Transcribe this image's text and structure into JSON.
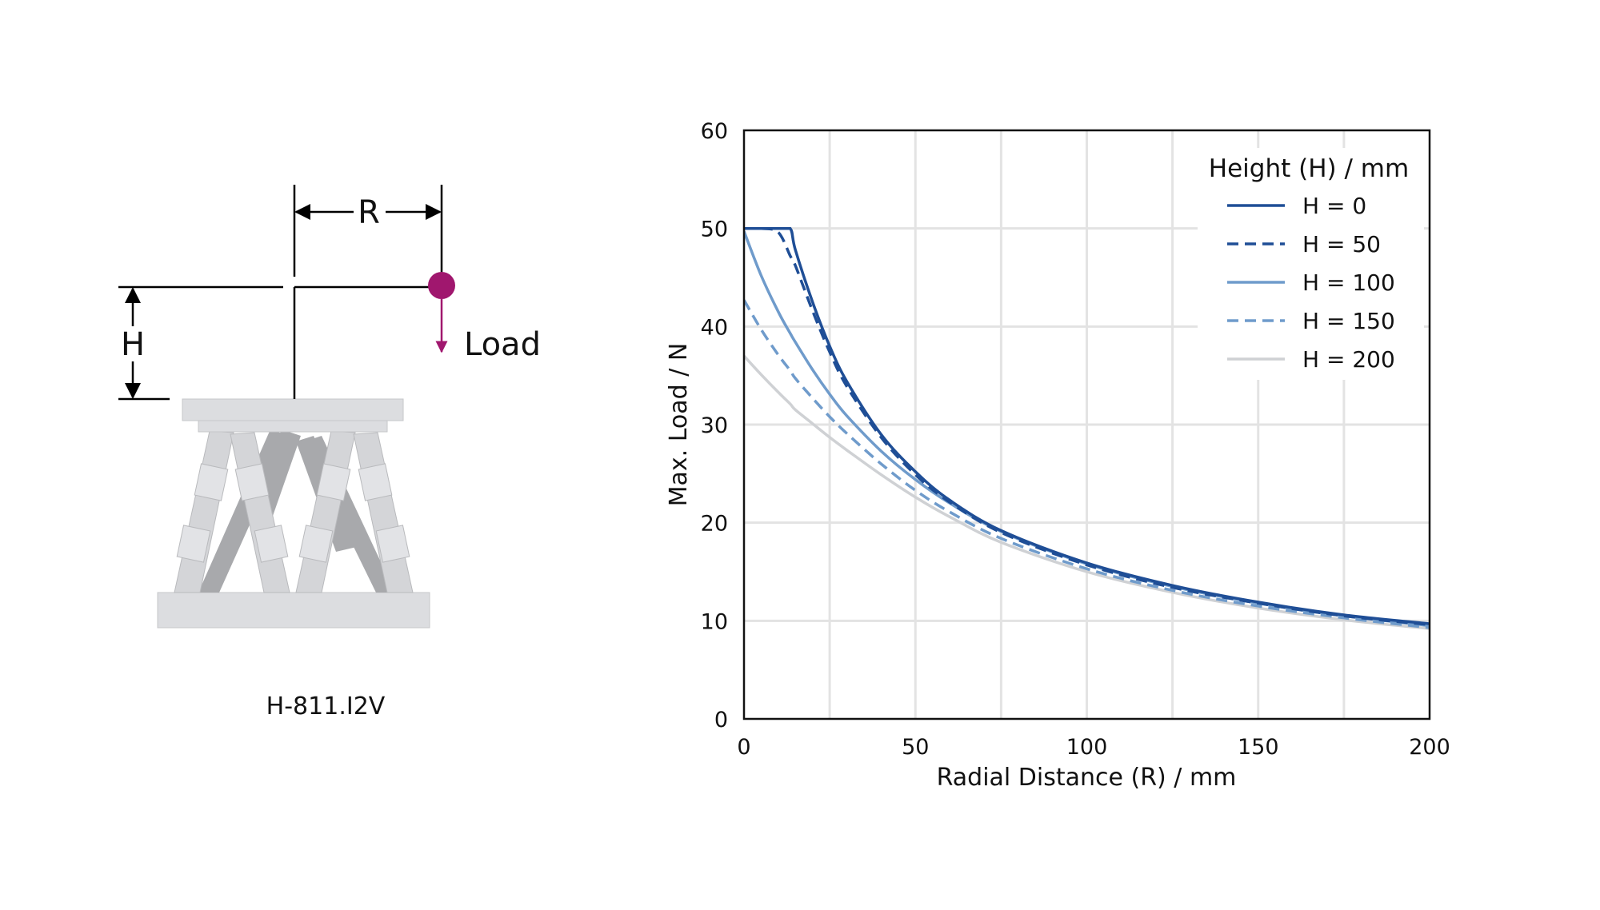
{
  "diagram": {
    "radius_label": "R",
    "height_label": "H",
    "load_label": "Load",
    "caption": "H-811.I2V",
    "load_color": "#a0176e"
  },
  "chart_data": {
    "type": "line",
    "xlabel": "Radial Distance (R) / mm",
    "ylabel": "Max. Load / N",
    "xlim": [
      0,
      200
    ],
    "ylim": [
      0,
      60
    ],
    "xticks": [
      "0",
      "50",
      "100",
      "150",
      "200"
    ],
    "yticks": [
      "0",
      "10",
      "20",
      "30",
      "40",
      "50",
      "60"
    ],
    "grid": true,
    "legend": {
      "title": "Height (H) / mm",
      "placement": "top-right"
    },
    "x": [
      0,
      5,
      10,
      13.5,
      15,
      20,
      25,
      30,
      40,
      50,
      60,
      75,
      100,
      125,
      150,
      175,
      200
    ],
    "series": [
      {
        "name": "H = 0",
        "color": "#1f4e96",
        "dash": "solid",
        "values": [
          50,
          50,
          50,
          50,
          47.8,
          42.5,
          38.0,
          34.4,
          29.0,
          25.2,
          22.3,
          19.2,
          15.9,
          13.6,
          11.9,
          10.6,
          9.7
        ]
      },
      {
        "name": "H = 50",
        "color": "#1f4e96",
        "dash": "dashed",
        "values": [
          50,
          50,
          49.6,
          47.2,
          46.2,
          41.6,
          37.4,
          33.9,
          28.7,
          24.9,
          22.1,
          19.0,
          15.7,
          13.4,
          11.8,
          10.5,
          9.6
        ]
      },
      {
        "name": "H = 100",
        "color": "#6f9bcb",
        "dash": "solid",
        "values": [
          49.7,
          45.2,
          41.5,
          39.3,
          38.4,
          35.6,
          33.1,
          30.9,
          27.3,
          24.4,
          22.0,
          19.1,
          15.8,
          13.5,
          11.8,
          10.5,
          9.5
        ]
      },
      {
        "name": "H = 150",
        "color": "#6f9bcb",
        "dash": "dashed",
        "values": [
          42.7,
          39.7,
          37.1,
          35.5,
          34.7,
          32.7,
          30.8,
          29.1,
          26.0,
          23.3,
          21.1,
          18.4,
          15.3,
          13.1,
          11.5,
          10.3,
          9.3
        ]
      },
      {
        "name": "H = 200",
        "color": "#cfd1d4",
        "dash": "solid",
        "values": [
          37.0,
          35.1,
          33.3,
          32.1,
          31.5,
          30.1,
          28.7,
          27.4,
          24.9,
          22.6,
          20.6,
          18.0,
          15.0,
          12.9,
          11.3,
          10.1,
          9.2
        ]
      }
    ]
  }
}
